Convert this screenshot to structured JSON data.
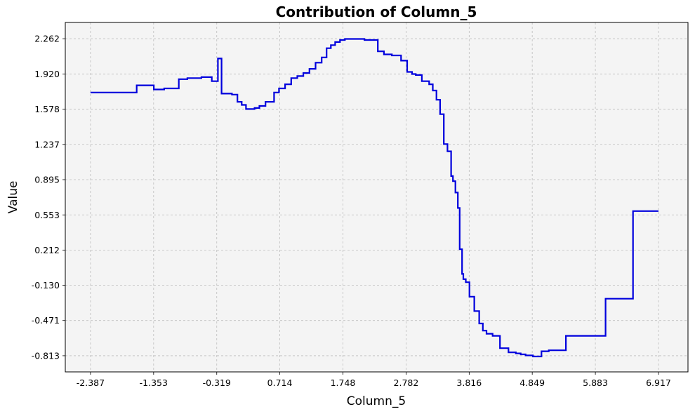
{
  "chart_data": {
    "type": "line",
    "title": "Contribution of Column_5",
    "xlabel": "Column_5",
    "ylabel": "Value",
    "xlim": [
      -2.8,
      7.4
    ],
    "ylim": [
      -0.97,
      2.42
    ],
    "xticks": [
      "-2.387",
      "-1.353",
      "-0.319",
      "0.714",
      "1.748",
      "2.782",
      "3.816",
      "4.849",
      "5.883",
      "6.917"
    ],
    "yticks": [
      "-0.813",
      "-0.471",
      "-0.130",
      "0.212",
      "0.553",
      "0.895",
      "1.237",
      "1.578",
      "1.920",
      "2.262"
    ],
    "grid": true,
    "background": "#f4f4f4",
    "series": [
      {
        "color": "#0000dd",
        "step": true,
        "x": [
          -2.387,
          -1.63,
          -1.35,
          -1.18,
          -0.94,
          -0.8,
          -0.57,
          -0.4,
          -0.3,
          -0.24,
          -0.07,
          0.02,
          0.09,
          0.16,
          0.3,
          0.38,
          0.48,
          0.62,
          0.7,
          0.8,
          0.9,
          1.0,
          1.1,
          1.2,
          1.3,
          1.4,
          1.48,
          1.55,
          1.62,
          1.7,
          1.78,
          1.9,
          2.1,
          2.32,
          2.42,
          2.55,
          2.7,
          2.8,
          2.88,
          2.94,
          3.04,
          3.16,
          3.22,
          3.28,
          3.34,
          3.4,
          3.46,
          3.52,
          3.55,
          3.59,
          3.63,
          3.66,
          3.7,
          3.72,
          3.76,
          3.82,
          3.9,
          3.98,
          4.04,
          4.1,
          4.2,
          4.32,
          4.46,
          4.58,
          4.66,
          4.74,
          4.86,
          5.0,
          5.12,
          5.4,
          5.58,
          5.62,
          6.05,
          6.5,
          6.917
        ],
        "y": [
          1.74,
          1.81,
          1.77,
          1.78,
          1.87,
          1.88,
          1.89,
          1.85,
          2.07,
          1.73,
          1.72,
          1.65,
          1.62,
          1.58,
          1.59,
          1.61,
          1.65,
          1.74,
          1.78,
          1.82,
          1.88,
          1.9,
          1.93,
          1.97,
          2.03,
          2.08,
          2.17,
          2.2,
          2.23,
          2.25,
          2.26,
          2.26,
          2.25,
          2.14,
          2.11,
          2.1,
          2.05,
          1.94,
          1.92,
          1.91,
          1.85,
          1.82,
          1.76,
          1.67,
          1.53,
          1.24,
          1.17,
          0.93,
          0.88,
          0.77,
          0.62,
          0.22,
          -0.02,
          -0.07,
          -0.1,
          -0.24,
          -0.38,
          -0.5,
          -0.57,
          -0.6,
          -0.62,
          -0.74,
          -0.78,
          -0.79,
          -0.8,
          -0.81,
          -0.82,
          -0.77,
          -0.76,
          -0.62,
          -0.62,
          -0.62,
          -0.26,
          0.59,
          0.59
        ]
      }
    ]
  }
}
